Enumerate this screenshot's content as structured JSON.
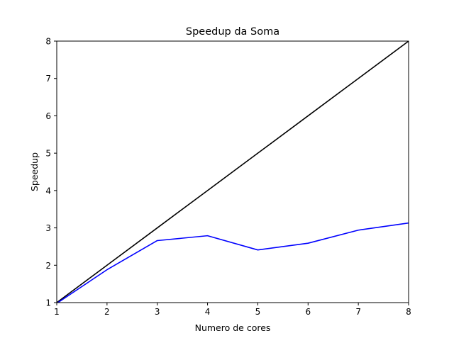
{
  "chart_data": {
    "type": "line",
    "title": "Speedup da Soma",
    "xlabel": "Numero de cores",
    "ylabel": "Speedup",
    "x": [
      1,
      2,
      3,
      4,
      5,
      6,
      7,
      8
    ],
    "xlim": [
      1,
      8
    ],
    "ylim": [
      1,
      8
    ],
    "xticks": [
      "1",
      "2",
      "3",
      "4",
      "5",
      "6",
      "7",
      "8"
    ],
    "yticks": [
      "1",
      "2",
      "3",
      "4",
      "5",
      "6",
      "7",
      "8"
    ],
    "grid": false,
    "series": [
      {
        "color": "#000000",
        "values": [
          1,
          2,
          3,
          4,
          5,
          6,
          7,
          8
        ]
      },
      {
        "color": "#0000ff",
        "values": [
          0.98,
          1.88,
          2.66,
          2.79,
          2.41,
          2.59,
          2.94,
          3.13
        ]
      }
    ]
  }
}
